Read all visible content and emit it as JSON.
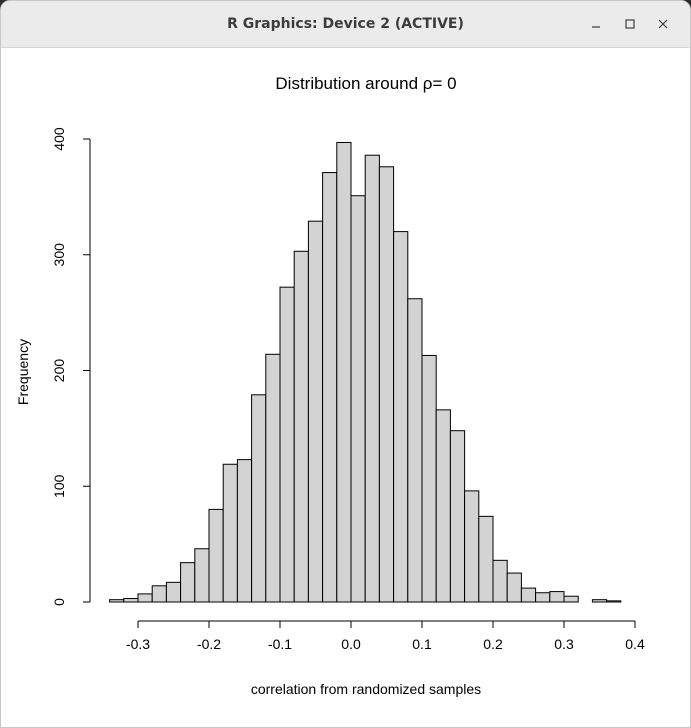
{
  "window": {
    "title": "R Graphics: Device 2 (ACTIVE)",
    "icons": {
      "minimize": "minimize-icon",
      "maximize": "maximize-icon",
      "close": "close-icon"
    }
  },
  "chart_data": {
    "type": "bar",
    "title": "Distribution around ρ= 0",
    "xlabel": "correlation from randomized samples",
    "ylabel": "Frequency",
    "bin_edges": [
      -0.34,
      -0.32,
      -0.3,
      -0.28,
      -0.26,
      -0.24,
      -0.22,
      -0.2,
      -0.18,
      -0.16,
      -0.14,
      -0.12,
      -0.1,
      -0.08,
      -0.06,
      -0.04,
      -0.02,
      0.0,
      0.02,
      0.04,
      0.06,
      0.08,
      0.1,
      0.12,
      0.14,
      0.16,
      0.18,
      0.2,
      0.22,
      0.24,
      0.26,
      0.28,
      0.3,
      0.32,
      0.34,
      0.36,
      0.38
    ],
    "values": [
      2,
      3,
      7,
      14,
      17,
      34,
      46,
      80,
      119,
      123,
      179,
      214,
      272,
      303,
      329,
      371,
      397,
      351,
      386,
      376,
      320,
      262,
      213,
      166,
      148,
      96,
      74,
      36,
      25,
      12,
      8,
      9,
      5,
      0,
      2,
      1
    ],
    "x_ticks": [
      -0.3,
      -0.2,
      -0.1,
      0.0,
      0.1,
      0.2,
      0.3,
      0.4
    ],
    "x_tick_labels": [
      "-0.3",
      "-0.2",
      "-0.1",
      "0.0",
      "0.1",
      "0.2",
      "0.3",
      "0.4"
    ],
    "y_ticks": [
      0,
      100,
      200,
      300,
      400
    ],
    "y_tick_labels": [
      "0",
      "100",
      "200",
      "300",
      "400"
    ],
    "xlim": [
      -0.34,
      0.4
    ],
    "ylim": [
      0,
      400
    ],
    "bar_fill": "#d3d3d3",
    "bar_stroke": "#000000",
    "grid": false
  }
}
